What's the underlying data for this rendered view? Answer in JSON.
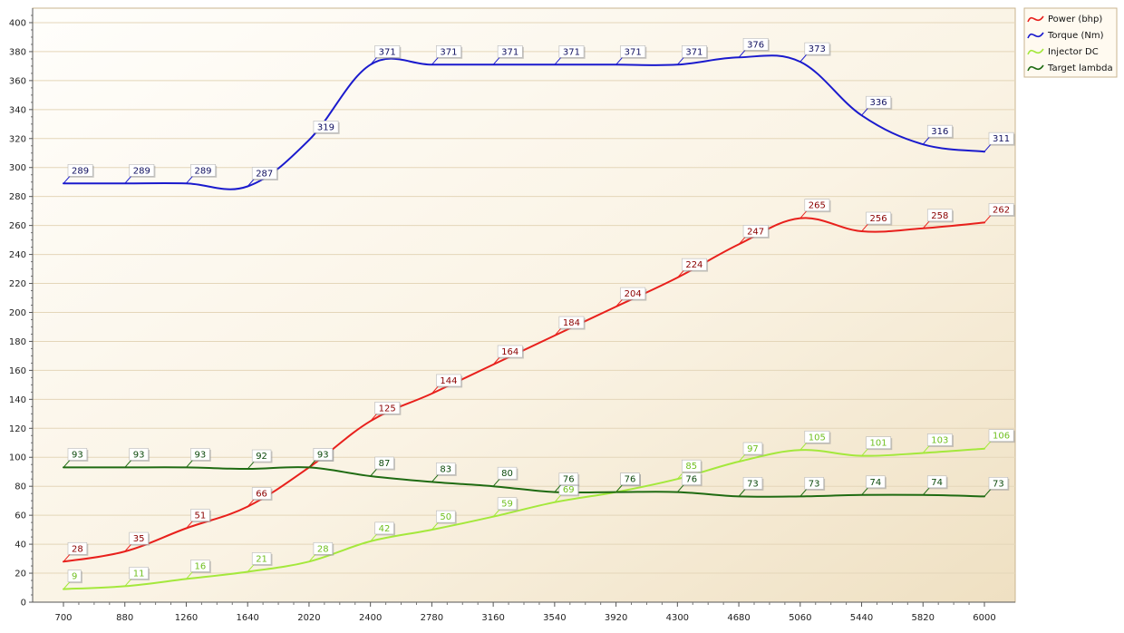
{
  "chart_data": {
    "type": "line",
    "title": "",
    "xlabel": "",
    "ylabel": "",
    "x": [
      700,
      880,
      1260,
      1640,
      2020,
      2400,
      2780,
      3160,
      3540,
      3920,
      4300,
      4680,
      5060,
      5440,
      5820,
      6000
    ],
    "x_ticks": [
      "700",
      "880",
      "1260",
      "1640",
      "2020",
      "2400",
      "2780",
      "3160",
      "3540",
      "3920",
      "4300",
      "4680",
      "5060",
      "5440",
      "5820",
      "6000"
    ],
    "ylim": [
      0,
      410
    ],
    "y_ticks": [
      "0",
      "20",
      "40",
      "60",
      "80",
      "100",
      "120",
      "140",
      "160",
      "180",
      "200",
      "220",
      "240",
      "260",
      "280",
      "300",
      "320",
      "340",
      "360",
      "380",
      "400"
    ],
    "grid": true,
    "legend_position": "top-right",
    "series": [
      {
        "name": "Power (bhp)",
        "color": "#e8201c",
        "label_color": "#8b0000",
        "points": [
          [
            700,
            28
          ],
          [
            880,
            35
          ],
          [
            1260,
            51
          ],
          [
            1640,
            66
          ],
          [
            2020,
            93
          ],
          [
            2400,
            125
          ],
          [
            2780,
            144
          ],
          [
            3160,
            164
          ],
          [
            3540,
            184
          ],
          [
            3920,
            204
          ],
          [
            4300,
            224
          ],
          [
            4680,
            247
          ],
          [
            5060,
            265
          ],
          [
            5440,
            256
          ],
          [
            5820,
            258
          ],
          [
            6000,
            262
          ]
        ]
      },
      {
        "name": "Torque (Nm)",
        "color": "#1a1acd",
        "label_color": "#101060",
        "points": [
          [
            700,
            289
          ],
          [
            880,
            289
          ],
          [
            1260,
            289
          ],
          [
            1640,
            287
          ],
          [
            2020,
            319
          ],
          [
            2400,
            371
          ],
          [
            2780,
            371
          ],
          [
            3160,
            371
          ],
          [
            3540,
            371
          ],
          [
            3920,
            371
          ],
          [
            4300,
            371
          ],
          [
            4680,
            376
          ],
          [
            5060,
            373
          ],
          [
            5440,
            336
          ],
          [
            5820,
            316
          ],
          [
            6000,
            311
          ]
        ]
      },
      {
        "name": "Injector DC",
        "color": "#a4e83c",
        "label_color": "#6fbf1f",
        "points": [
          [
            700,
            9
          ],
          [
            880,
            11
          ],
          [
            1260,
            16
          ],
          [
            1640,
            21
          ],
          [
            2020,
            28
          ],
          [
            2400,
            42
          ],
          [
            2780,
            50
          ],
          [
            3160,
            59
          ],
          [
            3540,
            69
          ],
          [
            3920,
            76
          ],
          [
            4300,
            85
          ],
          [
            4680,
            97
          ],
          [
            5060,
            105
          ],
          [
            5440,
            101
          ],
          [
            5820,
            103
          ],
          [
            6000,
            106
          ]
        ]
      },
      {
        "name": "Target lambda",
        "color": "#1f6b12",
        "label_color": "#0c4a0c",
        "points": [
          [
            700,
            93
          ],
          [
            880,
            93
          ],
          [
            1260,
            93
          ],
          [
            1640,
            92
          ],
          [
            2020,
            93
          ],
          [
            2400,
            87
          ],
          [
            2780,
            83
          ],
          [
            3160,
            80
          ],
          [
            3540,
            76
          ],
          [
            3920,
            76
          ],
          [
            4300,
            76
          ],
          [
            4680,
            73
          ],
          [
            5060,
            73
          ],
          [
            5440,
            74
          ],
          [
            5820,
            74
          ],
          [
            6000,
            73
          ]
        ]
      }
    ]
  }
}
